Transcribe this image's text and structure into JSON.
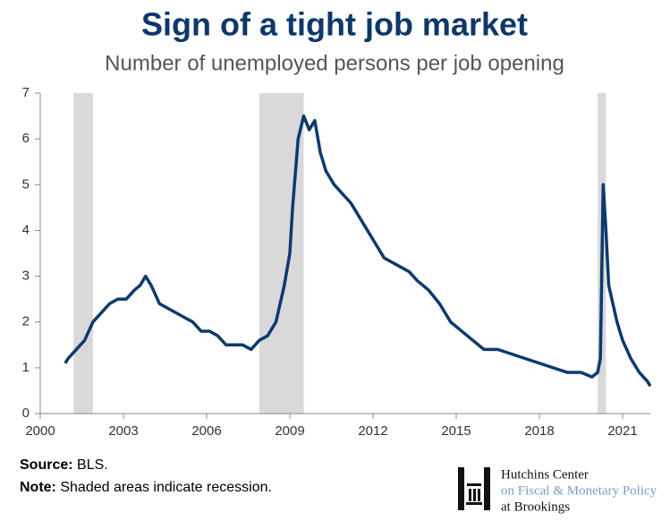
{
  "chart_data": {
    "type": "line",
    "title": "Sign of a tight job market",
    "subtitle": "Number of unemployed persons per job opening",
    "x": [
      2000.9,
      2001.0,
      2001.3,
      2001.6,
      2001.9,
      2002.2,
      2002.5,
      2002.8,
      2003.1,
      2003.4,
      2003.6,
      2003.8,
      2004.0,
      2004.3,
      2004.6,
      2004.9,
      2005.2,
      2005.5,
      2005.8,
      2006.1,
      2006.4,
      2006.7,
      2007.0,
      2007.3,
      2007.6,
      2007.9,
      2008.2,
      2008.5,
      2008.8,
      2009.0,
      2009.1,
      2009.3,
      2009.5,
      2009.7,
      2009.9,
      2010.1,
      2010.3,
      2010.6,
      2010.9,
      2011.2,
      2011.5,
      2011.8,
      2012.1,
      2012.4,
      2012.7,
      2013.0,
      2013.3,
      2013.6,
      2014.0,
      2014.4,
      2014.8,
      2015.2,
      2015.6,
      2016.0,
      2016.5,
      2017.0,
      2017.5,
      2018.0,
      2018.5,
      2019.0,
      2019.5,
      2019.9,
      2020.1,
      2020.2,
      2020.3,
      2020.4,
      2020.5,
      2020.8,
      2021.0,
      2021.3,
      2021.6,
      2021.9,
      2022.0
    ],
    "series": [
      {
        "name": "Unemployed persons per job opening",
        "color": "#0d3a6e",
        "values": [
          1.1,
          1.2,
          1.4,
          1.6,
          2.0,
          2.2,
          2.4,
          2.5,
          2.5,
          2.7,
          2.8,
          3.0,
          2.8,
          2.4,
          2.3,
          2.2,
          2.1,
          2.0,
          1.8,
          1.8,
          1.7,
          1.5,
          1.5,
          1.5,
          1.4,
          1.6,
          1.7,
          2.0,
          2.8,
          3.5,
          4.5,
          6.0,
          6.5,
          6.2,
          6.4,
          5.7,
          5.3,
          5.0,
          4.8,
          4.6,
          4.3,
          4.0,
          3.7,
          3.4,
          3.3,
          3.2,
          3.1,
          2.9,
          2.7,
          2.4,
          2.0,
          1.8,
          1.6,
          1.4,
          1.4,
          1.3,
          1.2,
          1.1,
          1.0,
          0.9,
          0.9,
          0.8,
          0.9,
          1.2,
          5.0,
          4.0,
          2.8,
          2.0,
          1.6,
          1.2,
          0.9,
          0.7,
          0.6
        ]
      }
    ],
    "recessions": [
      [
        2001.2,
        2001.9
      ],
      [
        2007.9,
        2009.5
      ],
      [
        2020.1,
        2020.4
      ]
    ],
    "recession_color": "#d9d9d9",
    "xlim": [
      2000,
      2022
    ],
    "xticks": [
      2000,
      2003,
      2006,
      2009,
      2012,
      2015,
      2018,
      2021
    ],
    "ylim": [
      0,
      7
    ],
    "yticks": [
      0,
      1,
      2,
      3,
      4,
      5,
      6,
      7
    ],
    "source_label": "Source:",
    "source_text": "BLS.",
    "note_label": "Note:",
    "note_text": "Shaded areas indicate recession.",
    "logo": [
      "Hutchins Center",
      "on Fiscal & Monetary Policy",
      "at Brookings"
    ]
  }
}
